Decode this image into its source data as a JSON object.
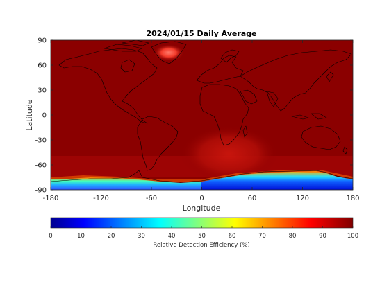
{
  "chart_data": {
    "type": "heatmap",
    "title": "2024/01/15 Daily Average",
    "xlabel": "Longitude",
    "ylabel": "Latitude",
    "xlim": [
      -180,
      180
    ],
    "ylim": [
      -90,
      90
    ],
    "x_ticks": [
      "-180",
      "-120",
      "-60",
      "0",
      "60",
      "120",
      "180"
    ],
    "y_ticks": [
      "90",
      "60",
      "30",
      "0",
      "-30",
      "-60",
      "-90"
    ],
    "colormap": "jet",
    "colorbar": {
      "label": "Relative Detection Efficiency (%)",
      "range": [
        0,
        100
      ],
      "ticks": [
        "0",
        "10",
        "20",
        "30",
        "40",
        "50",
        "60",
        "70",
        "80",
        "90",
        "100"
      ]
    },
    "background_value": 100,
    "features": [
      {
        "region": "Greenland interior",
        "value": 85
      },
      {
        "region": "Southern Africa / South Atlantic",
        "value": 90
      },
      {
        "region": "Antarctica, 150W-0",
        "value": 35
      },
      {
        "region": "Antarctica, 0-150E",
        "value": 15
      },
      {
        "region": "Antarctic coastal margin",
        "value": 70
      }
    ],
    "grid": false,
    "legend": "colorbar-bottom"
  }
}
